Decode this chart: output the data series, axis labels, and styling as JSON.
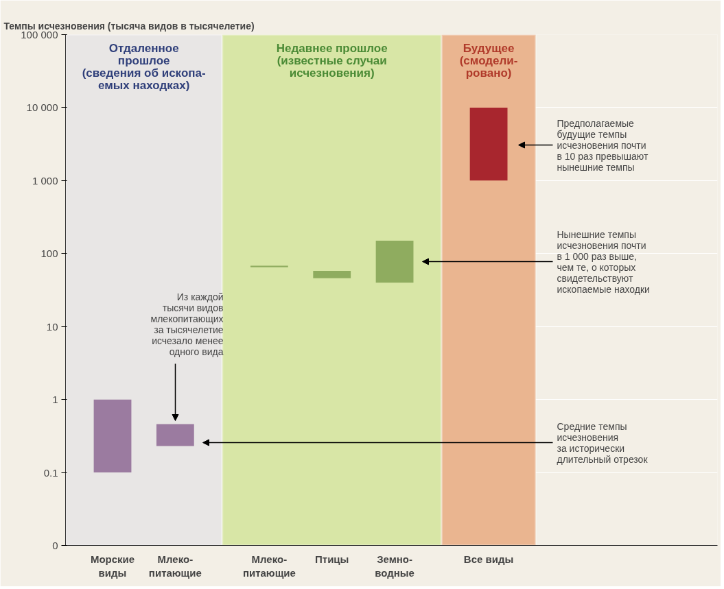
{
  "chart_data": {
    "type": "bar",
    "title": "Темпы исчезновения (тысяча видов в тысячелетие)",
    "categories": [
      "Морские\nвиды",
      "Млеко-\nпитающие",
      "Млеко-\nпитающие",
      "Птицы",
      "Земно-\nводные",
      "Все виды"
    ],
    "values": [
      0.9,
      0.23,
      3,
      12,
      110,
      9000
    ],
    "base": [
      0.1,
      0.23,
      65,
      46,
      40,
      1000
    ],
    "colors": [
      "#9b7ba0",
      "#9b7ba0",
      "#8fac5f",
      "#8fac5f",
      "#8fac5f",
      "#a8262e"
    ],
    "log": true,
    "ylim": [
      0.01,
      100000
    ],
    "yticks": [
      {
        "value": 0.01,
        "label": "0"
      },
      0.1,
      1,
      {
        "value": 10,
        "label": "10"
      },
      {
        "value": 100,
        "label": "100"
      },
      {
        "value": 1000,
        "label": "1 000"
      },
      {
        "value": 10000,
        "label": "10 000"
      },
      {
        "value": 100000,
        "label": "100 000"
      }
    ],
    "grid": "y",
    "bands": [
      {
        "axis": "x",
        "from": "Морские\nвиды",
        "to": "Млеко-\nпитающие",
        "label": "Отдаленное\nпрошлое\n(сведения об ископа-\nемых находках)",
        "color": "#e8e6e5"
      },
      {
        "axis": "x",
        "from": "Млеко-\nпитающие",
        "to": "Земно-\nводные",
        "label": "Недавнее прошлое\n(известные случаи\nисчезновения)",
        "color": "#d8e6a6"
      },
      {
        "axis": "x",
        "from": "Все виды",
        "to": "Все виды",
        "label": "Будущее\n(смодели-\nровано)",
        "color": "#eab590"
      }
    ],
    "annotations": [
      "Предполагаемые\nбудущие темпы\nисчезновения почти\nв 10 раз превышают\nнынешние темпы",
      "Нынешние темпы\nисчезновения почти\nв 1 000 раз выше,\nчем те, о которых\nсвидетельствуют\nископаемые находки",
      "Средние темпы\nисчезновения\nза исторически\nдлительный отрезок",
      "Из каждой\nтысячи видов\nмлекопитающих\nза тысячелетие\nисчезало менее\nодного вида"
    ]
  }
}
